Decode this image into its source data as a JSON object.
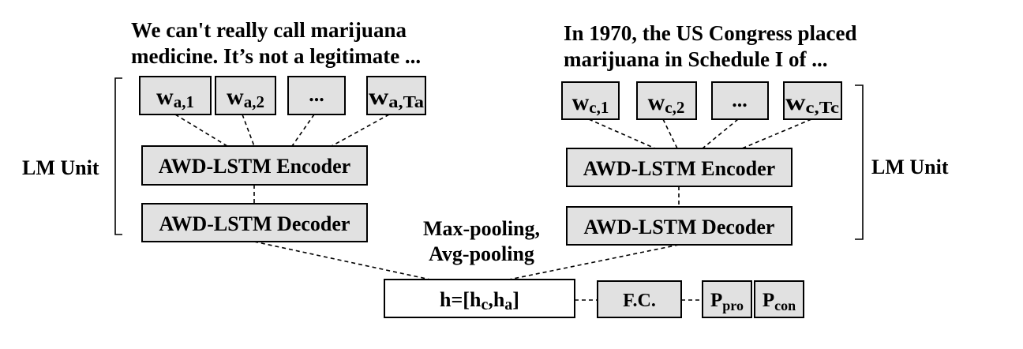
{
  "left": {
    "sentence_line1": "We can't really call marijuana",
    "sentence_line2": "medicine.  It’s not a legitimate ...",
    "tokens": [
      {
        "base": "w",
        "sub": "a,1"
      },
      {
        "base": "w",
        "sub": "a,2"
      },
      {
        "base": "...",
        "sub": ""
      },
      {
        "base": "w",
        "sub": "a,Ta"
      }
    ],
    "encoder_label": "AWD-LSTM Encoder",
    "decoder_label": "AWD-LSTM Decoder",
    "unit_label": "LM Unit"
  },
  "right": {
    "sentence_line1": "In 1970, the US Congress placed",
    "sentence_line2": "marijuana  in Schedule I of ...",
    "tokens": [
      {
        "base": "w",
        "sub": "c,1"
      },
      {
        "base": "w",
        "sub": "c,2"
      },
      {
        "base": "...",
        "sub": ""
      },
      {
        "base": "w",
        "sub": "c,Tc"
      }
    ],
    "encoder_label": "AWD-LSTM Encoder",
    "decoder_label": "AWD-LSTM Decoder",
    "unit_label": "LM Unit"
  },
  "pooling_line1": "Max-pooling,",
  "pooling_line2": "Avg-pooling",
  "hidden": {
    "prefix": "h=[h",
    "sub_c": "c",
    "comma": ",h",
    "sub_a": "a",
    "suffix": "]"
  },
  "fc_label": "F.C.",
  "p_pro": {
    "base": "P",
    "sub": "pro"
  },
  "p_con": {
    "base": "P",
    "sub": "con"
  }
}
